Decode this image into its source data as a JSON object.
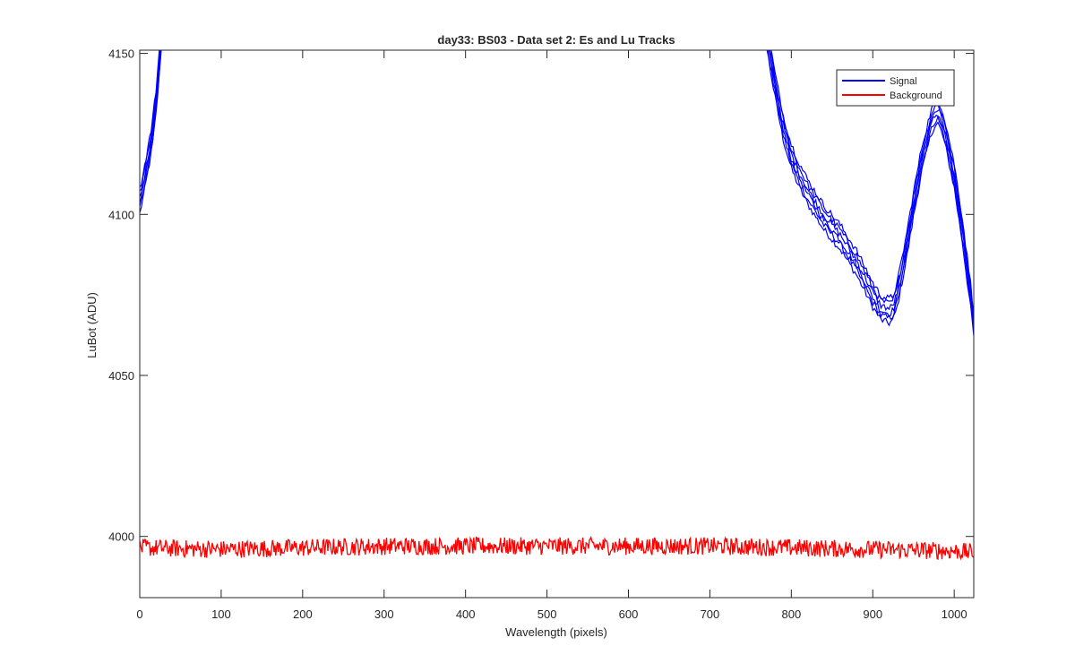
{
  "chart_data": {
    "type": "line",
    "title": "day33: BS03 - Data set 2: Es and Lu Tracks",
    "xlabel": "Wavelength (pixels)",
    "ylabel": "LuBot (ADU)",
    "xlim": [
      0,
      1024
    ],
    "ylim": [
      3981,
      4151
    ],
    "xticks": [
      0,
      100,
      200,
      300,
      400,
      500,
      600,
      700,
      800,
      900,
      1000
    ],
    "yticks": [
      4000,
      4050,
      4100,
      4150
    ],
    "grid": false,
    "legend_position": "top-right",
    "series": [
      {
        "name": "Signal",
        "color": "#0000ff",
        "note_num_traces": 6,
        "x": [
          0,
          5,
          10,
          15,
          20,
          25,
          30,
          760,
          770,
          780,
          790,
          800,
          810,
          820,
          830,
          840,
          850,
          860,
          870,
          880,
          890,
          900,
          910,
          920,
          925,
          930,
          940,
          950,
          960,
          970,
          975,
          980,
          985,
          990,
          1000,
          1010,
          1020,
          1024
        ],
        "y": [
          4104,
          4110,
          4117,
          4124,
          4135,
          4150,
          4170,
          4170,
          4155,
          4140,
          4127,
          4118,
          4112,
          4107,
          4103,
          4099,
          4096,
          4093,
          4089,
          4085,
          4080,
          4075,
          4071,
          4070,
          4071,
          4075,
          4088,
          4103,
          4117,
          4127,
          4131,
          4132,
          4129,
          4124,
          4112,
          4095,
          4075,
          4066
        ]
      },
      {
        "name": "Background",
        "color": "#ff0000",
        "x": [
          0,
          100,
          200,
          300,
          400,
          500,
          600,
          700,
          800,
          900,
          1000,
          1024
        ],
        "y": [
          3996.5,
          3996,
          3996.5,
          3997,
          3997,
          3997,
          3997,
          3997,
          3996.5,
          3996,
          3995.5,
          3995
        ]
      }
    ]
  }
}
